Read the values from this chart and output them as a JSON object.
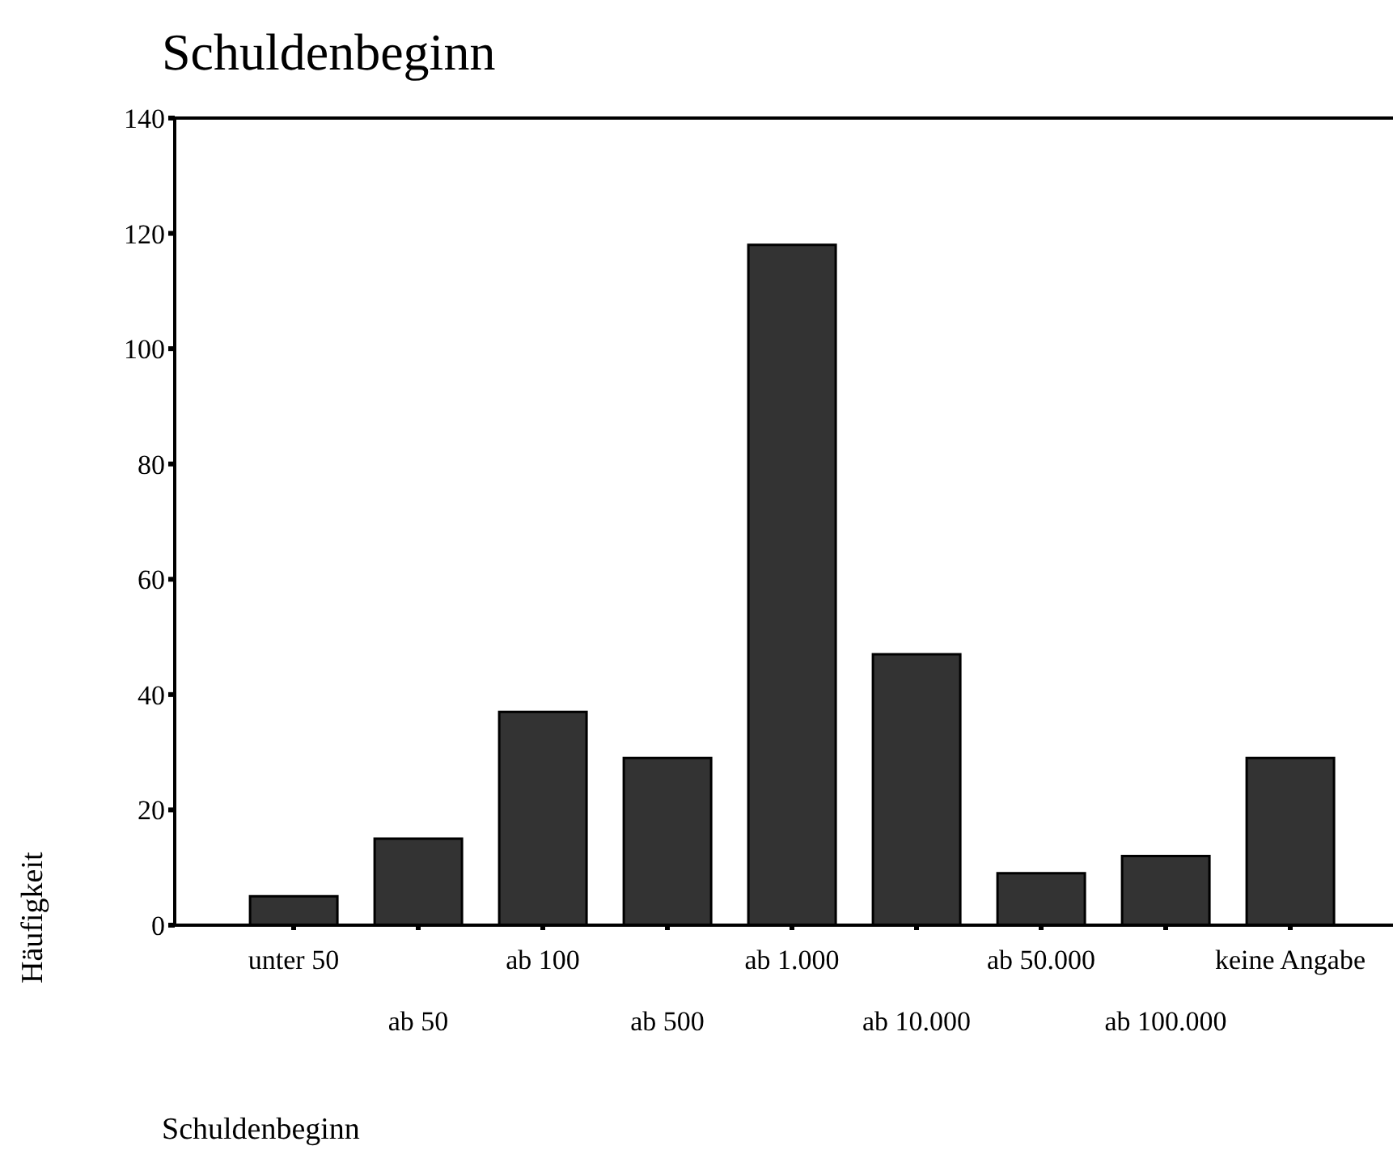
{
  "chart_data": {
    "type": "bar",
    "title": "Schuldenbeginn",
    "xlabel": "Schuldenbeginn",
    "ylabel": "Häufigkeit",
    "categories": [
      "unter 50",
      "ab 50",
      "ab 100",
      "ab 500",
      "ab 1.000",
      "ab 10.000",
      "ab 50.000",
      "ab 100.000",
      "keine Angabe"
    ],
    "values": [
      5,
      15,
      37,
      29,
      118,
      47,
      9,
      12,
      29
    ],
    "color": "#333333",
    "ylim": [
      0,
      140
    ],
    "yticks": [
      0,
      20,
      40,
      60,
      80,
      100,
      120,
      140
    ]
  }
}
